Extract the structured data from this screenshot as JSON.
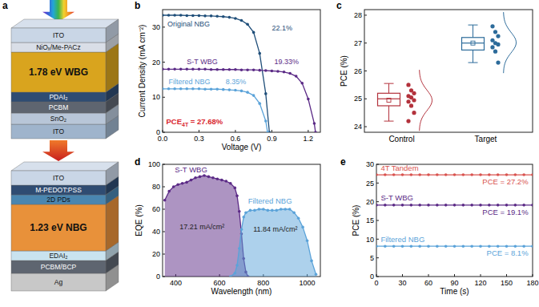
{
  "diagram": {
    "panel_label": "a",
    "stacks": [
      {
        "layers": [
          {
            "label": "ITO",
            "color": "#c9d6e6"
          },
          {
            "label": "NiOₓ/Me-PACz",
            "color": "#d9dee7"
          },
          {
            "label": "1.78 eV WBG",
            "color": "#d9a41e"
          },
          {
            "label": "PDAI₂",
            "color": "#2f4c72"
          },
          {
            "label": "PCBM",
            "color": "#5e6570"
          },
          {
            "label": "SnO₂",
            "color": "#b8c6d8"
          },
          {
            "label": "ITO",
            "color": "#9fb4cc"
          }
        ]
      },
      {
        "layers": [
          {
            "label": "ITO",
            "color": "#c9d6e6"
          },
          {
            "label": "M-PEDOT:PSS",
            "color": "#2f4c72"
          },
          {
            "label": "2D PDs",
            "color": "#4a86b0"
          },
          {
            "label": "1.23 eV NBG",
            "color": "#e8913a"
          },
          {
            "label": "EDAI₂",
            "color": "#c9e3ef"
          },
          {
            "label": "PCBM/BCP",
            "color": "#5e6570"
          },
          {
            "label": "Ag",
            "color": "#c8c8c8"
          }
        ]
      }
    ]
  },
  "chart_data": [
    {
      "panel_label": "b",
      "type": "line",
      "x_label": "Voltage (V)",
      "y_label": "Current Density (mA cm⁻²)",
      "xlim": [
        0,
        1.3
      ],
      "ylim": [
        0,
        35
      ],
      "xticks": [
        {
          "value": 0,
          "label": "0.0"
        },
        0.3,
        0.6,
        0.9,
        1.2
      ],
      "yticks": [
        0,
        10,
        20,
        30
      ],
      "marker": "circle",
      "annotation": {
        "text": "PCE",
        "subscript": "4T",
        "suffix": " = 27.68%",
        "color": "#d9262e"
      },
      "series": [
        {
          "name": "Original NBG",
          "color": "#1f4e79",
          "annotation": "22.1%",
          "x": [
            0,
            0.05,
            0.1,
            0.15,
            0.2,
            0.25,
            0.3,
            0.35,
            0.4,
            0.45,
            0.5,
            0.55,
            0.6,
            0.65,
            0.7,
            0.75,
            0.8,
            0.85,
            0.88
          ],
          "values": [
            33.4,
            33.4,
            33.4,
            33.4,
            33.3,
            33.3,
            33.3,
            33.2,
            33.2,
            33.1,
            33.0,
            32.8,
            32.5,
            31.9,
            30.8,
            28.5,
            22.5,
            11.0,
            0
          ]
        },
        {
          "name": "S-T WBG",
          "color": "#5b2a86",
          "annotation": "19.33%",
          "x": [
            0,
            0.05,
            0.1,
            0.15,
            0.2,
            0.25,
            0.3,
            0.35,
            0.4,
            0.45,
            0.5,
            0.55,
            0.6,
            0.65,
            0.7,
            0.75,
            0.8,
            0.85,
            0.9,
            0.95,
            1.0,
            1.05,
            1.1,
            1.15,
            1.2,
            1.25,
            1.26
          ],
          "values": [
            18.0,
            18.0,
            18.0,
            18.0,
            18.0,
            18.0,
            18.0,
            18.0,
            17.9,
            17.9,
            17.9,
            17.9,
            17.9,
            17.8,
            17.8,
            17.8,
            17.7,
            17.6,
            17.5,
            17.4,
            17.2,
            16.8,
            16.0,
            14.0,
            9.5,
            2.5,
            0
          ]
        },
        {
          "name": "Filtered NBG",
          "color": "#5ba3d9",
          "annotation": "8.35%",
          "x": [
            0,
            0.05,
            0.1,
            0.15,
            0.2,
            0.25,
            0.3,
            0.35,
            0.4,
            0.45,
            0.5,
            0.55,
            0.6,
            0.65,
            0.7,
            0.75,
            0.8,
            0.85,
            0.865
          ],
          "values": [
            12.4,
            12.4,
            12.4,
            12.4,
            12.4,
            12.4,
            12.4,
            12.3,
            12.3,
            12.3,
            12.2,
            12.1,
            12.0,
            11.8,
            11.4,
            10.5,
            8.2,
            3.2,
            0
          ]
        }
      ]
    },
    {
      "panel_label": "c",
      "type": "box",
      "y_label": "PCE (%)",
      "categories": [
        "Control",
        "Target"
      ],
      "colors": [
        "#b3323c",
        "#2c6b9a"
      ],
      "ylim": [
        23.8,
        28.2
      ],
      "yticks": [
        24,
        25,
        26,
        27,
        28
      ],
      "boxes": [
        {
          "q1": 24.75,
          "median": 25.0,
          "q3": 25.2,
          "low": 24.2,
          "high": 25.55,
          "mean": 24.95,
          "points": [
            25.5,
            25.3,
            25.2,
            25.1,
            25.05,
            24.95,
            24.9,
            24.75,
            24.5,
            24.2
          ]
        },
        {
          "q1": 26.75,
          "median": 27.0,
          "q3": 27.2,
          "low": 26.3,
          "high": 27.65,
          "mean": 27.0,
          "points": [
            27.6,
            27.4,
            27.25,
            27.1,
            27.0,
            26.95,
            26.85,
            26.7,
            26.3
          ]
        }
      ]
    },
    {
      "panel_label": "d",
      "type": "area",
      "x_label": "Wavelength (nm)",
      "y_label": "EQE (%)",
      "xlim": [
        340,
        1060
      ],
      "ylim": [
        0,
        100
      ],
      "xticks": [
        400,
        600,
        800,
        1000
      ],
      "yticks": [
        0,
        20,
        40,
        60,
        80,
        100
      ],
      "marker": "circle",
      "series": [
        {
          "name": "S-T WBG",
          "color": "#5b2a86",
          "annotation": "17.21 mA/cm²",
          "x": [
            350,
            370,
            390,
            410,
            430,
            450,
            470,
            490,
            510,
            530,
            550,
            570,
            590,
            610,
            630,
            650,
            670,
            680,
            690,
            700,
            710,
            720,
            730
          ],
          "values": [
            68,
            76,
            80,
            82,
            83,
            84,
            86,
            88,
            89,
            90,
            89,
            88,
            87,
            86,
            85,
            83,
            79,
            72,
            58,
            38,
            16,
            4,
            0
          ]
        },
        {
          "name": "Filtered NBG",
          "color": "#5ba3d9",
          "annotation": "11.84 mA/cm²",
          "x": [
            650,
            670,
            680,
            690,
            700,
            710,
            720,
            740,
            760,
            780,
            800,
            820,
            840,
            860,
            880,
            900,
            920,
            940,
            960,
            980,
            1000,
            1020,
            1040
          ],
          "values": [
            0,
            3,
            10,
            25,
            42,
            53,
            57,
            59,
            59,
            60,
            60,
            59,
            59,
            59,
            60,
            60,
            60,
            57,
            52,
            44,
            32,
            14,
            2
          ]
        }
      ]
    },
    {
      "panel_label": "e",
      "type": "line",
      "x_label": "Time (s)",
      "y_label": "PCE (%)",
      "xlim": [
        0,
        180
      ],
      "ylim": [
        0,
        30
      ],
      "xticks": [
        0,
        30,
        60,
        90,
        120,
        150,
        180
      ],
      "yticks": [
        0,
        5,
        10,
        15,
        20,
        25,
        30
      ],
      "marker": "circle",
      "x": [
        0,
        10,
        20,
        30,
        40,
        50,
        60,
        70,
        80,
        90,
        100,
        110,
        120,
        130,
        140,
        150,
        160,
        170,
        180
      ],
      "series": [
        {
          "name": "4T Tandem",
          "color": "#d9534f",
          "annotation": "PCE = 27.2%",
          "values": [
            27.2,
            27.2,
            27.2,
            27.2,
            27.2,
            27.2,
            27.2,
            27.2,
            27.2,
            27.2,
            27.2,
            27.2,
            27.2,
            27.2,
            27.2,
            27.2,
            27.2,
            27.2,
            27.2
          ]
        },
        {
          "name": "S-T WBG",
          "color": "#5b2a86",
          "annotation": "PCE = 19.1%",
          "values": [
            19.1,
            19.1,
            19.1,
            19.1,
            19.1,
            19.1,
            19.1,
            19.1,
            19.1,
            19.1,
            19.1,
            19.1,
            19.1,
            19.1,
            19.1,
            19.1,
            19.1,
            19.1,
            19.1
          ]
        },
        {
          "name": "Filtered NBG",
          "color": "#5ba3d9",
          "annotation": "PCE = 8.1%",
          "values": [
            8.1,
            8.1,
            8.1,
            8.1,
            8.1,
            8.1,
            8.1,
            8.1,
            8.1,
            8.1,
            8.1,
            8.1,
            8.1,
            8.1,
            8.1,
            8.1,
            8.1,
            8.1,
            8.1
          ]
        }
      ]
    }
  ]
}
